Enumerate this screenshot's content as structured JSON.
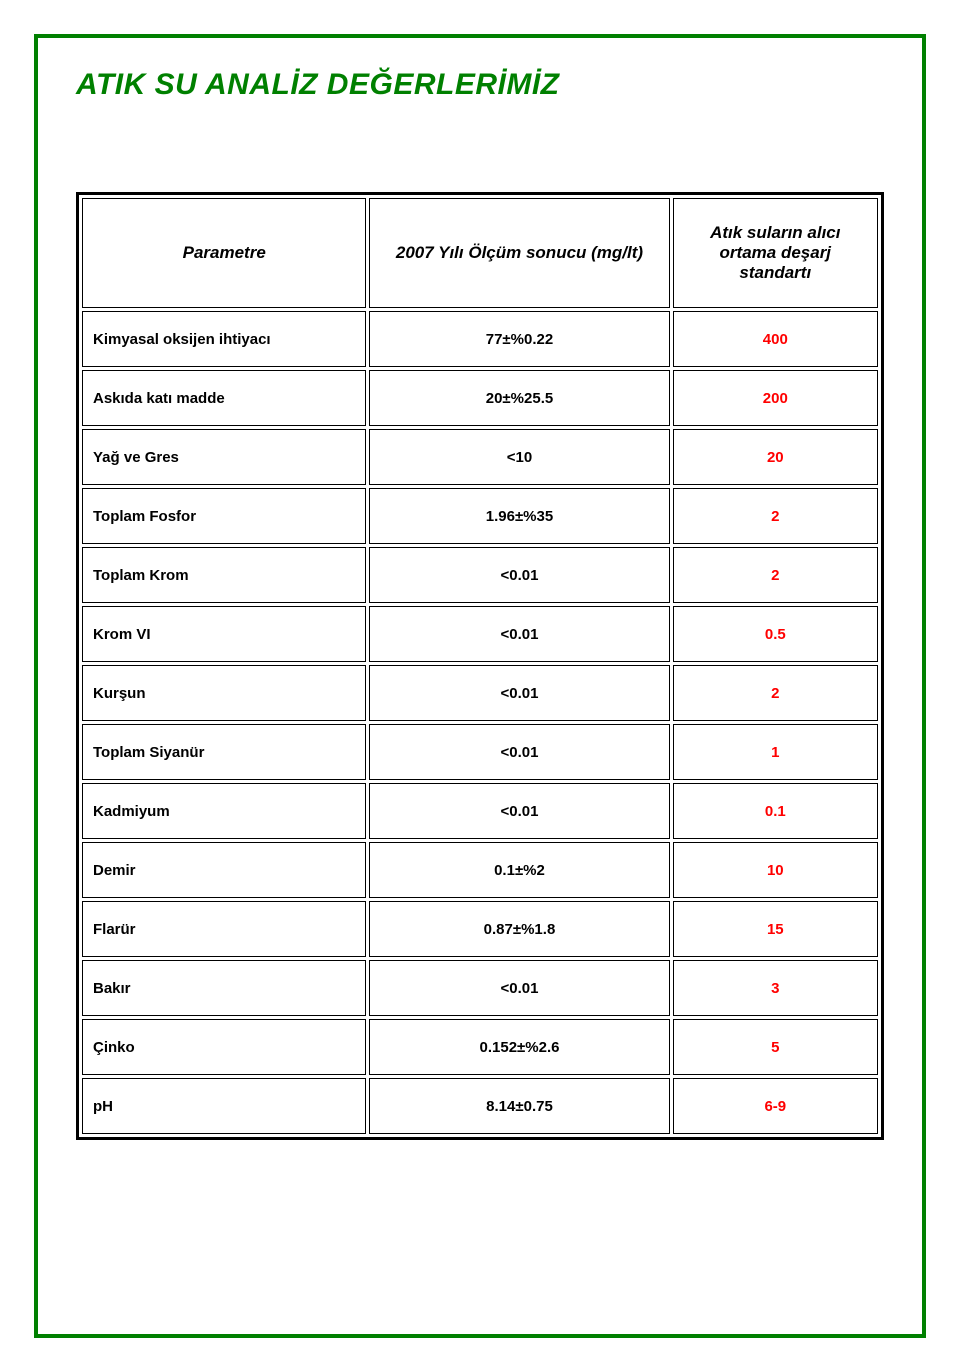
{
  "title": "ATIK SU ANALİZ DEĞERLERİMİZ",
  "table": {
    "headers": {
      "param": "Parametre",
      "value": "2007 Yılı Ölçüm sonucu (mg/lt)",
      "standard": "Atık suların alıcı ortama deşarj standartı"
    },
    "colors": {
      "standard": "#ff0000",
      "measurement": "#000000",
      "parameter": "#000000"
    },
    "rows": [
      {
        "param": "Kimyasal oksijen ihtiyacı",
        "value": "77±%0.22",
        "standard": "400"
      },
      {
        "param": "Askıda katı madde",
        "value": "20±%25.5",
        "standard": "200"
      },
      {
        "param": "Yağ ve Gres",
        "value": "<10",
        "standard": "20"
      },
      {
        "param": "Toplam Fosfor",
        "value": "1.96±%35",
        "standard": "2"
      },
      {
        "param": "Toplam Krom",
        "value": "<0.01",
        "standard": "2"
      },
      {
        "param": "Krom VI",
        "value": "<0.01",
        "standard": "0.5"
      },
      {
        "param": "Kurşun",
        "value": "<0.01",
        "standard": "2"
      },
      {
        "param": "Toplam Siyanür",
        "value": "<0.01",
        "standard": "1"
      },
      {
        "param": "Kadmiyum",
        "value": "<0.01",
        "standard": "0.1"
      },
      {
        "param": "Demir",
        "value": "0.1±%2",
        "standard": "10"
      },
      {
        "param": "Flarür",
        "value": "0.87±%1.8",
        "standard": "15"
      },
      {
        "param": "Bakır",
        "value": "<0.01",
        "standard": "3"
      },
      {
        "param": "Çinko",
        "value": "0.152±%2.6",
        "standard": "5"
      },
      {
        "param": "pH",
        "value": "8.14±0.75",
        "standard": "6-9"
      }
    ]
  }
}
